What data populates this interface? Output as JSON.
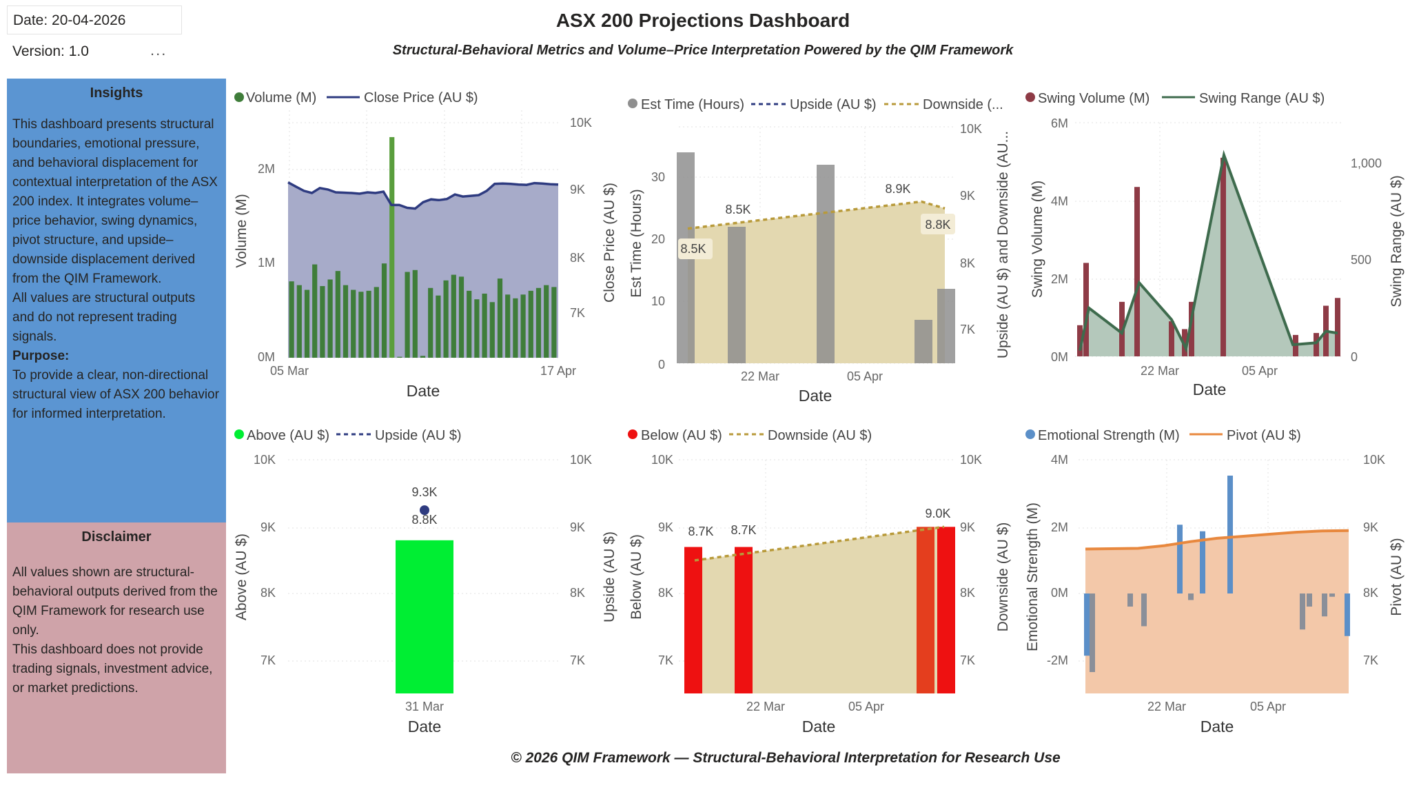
{
  "header": {
    "date": "Date: 20-04-2026",
    "version": "Version: 1.0",
    "more": "...",
    "title": "ASX 200 Projections Dashboard",
    "subtitle": "Structural-Behavioral Metrics and Volume–Price Interpretation Powered by the QIM Framework"
  },
  "insights": {
    "title": "Insights",
    "text1": "This dashboard presents structural boundaries, emotional pressure, and behavioral displacement for contextual interpretation of the ASX 200 index. It integrates volume–price behavior, swing dynamics, pivot structure, and upside–downside displacement derived from the QIM Framework.",
    "text2": "All values are structural outputs and do not represent trading signals.",
    "purpose_label": "Purpose:",
    "purpose_text": "To provide a clear, non-directional structural view of ASX 200 behavior for informed interpretation."
  },
  "disclaimer": {
    "title": "Disclaimer",
    "text1": "All values shown are structural-behavioral outputs derived from the QIM Framework for research use only.",
    "text2": "This dashboard does not provide trading signals, investment advice, or market predictions."
  },
  "footer": "© 2026 QIM Framework — Structural-Behavioral Interpretation for Research Use",
  "colors": {
    "volume": "#3f7d3a",
    "volume_spike": "#5a9e3d",
    "close_line": "#2e3b80",
    "close_area": "#a7abc9",
    "est_time": "#8f8f8f",
    "upside_line": "#2e3b80",
    "downside_line": "#b89a3a",
    "updown_area": "#e3d8b0",
    "swing_volume": "#8e3b46",
    "swing_range": "#3e6b4d",
    "swing_area": "#b4c8bb",
    "above": "#00ee33",
    "below_bar": "#ee1111",
    "below_bar_dark": "#e43e1e",
    "emotional": "#5b8fc8",
    "emotional_dim": "#8a8f99",
    "pivot": "#e8883e",
    "pivot_area": "#f3c8a9"
  },
  "charts": {
    "c1": {
      "legend": [
        "Volume (M)",
        "Close Price (AU $)"
      ],
      "y_left_title": "Volume (M)",
      "y_right_title": "Close Price (AU $)",
      "x_title": "Date",
      "y_left_ticks": [
        "0M",
        "1M",
        "2M"
      ],
      "y_right_ticks": [
        "7K",
        "8K",
        "9K",
        "10K"
      ],
      "x_ticks": [
        "05 Mar",
        "17 Apr"
      ]
    },
    "c2": {
      "legend": [
        "Est Time (Hours)",
        "Upside (AU $)",
        "Downside (..."
      ],
      "y_left_title": "Est Time (Hours)",
      "y_right_title": "Upside (AU $) and Downside (AU...",
      "x_title": "Date",
      "y_left_ticks": [
        "0",
        "10",
        "20",
        "30"
      ],
      "y_right_ticks": [
        "7K",
        "8K",
        "9K",
        "10K"
      ],
      "x_ticks": [
        "22 Mar",
        "05 Apr"
      ],
      "labels": [
        "8.5K",
        "8.5K",
        "8.9K",
        "8.8K"
      ]
    },
    "c3": {
      "legend": [
        "Swing Volume (M)",
        "Swing Range (AU $)"
      ],
      "y_left_title": "Swing Volume (M)",
      "y_right_title": "Swing Range (AU $)",
      "x_title": "Date",
      "y_left_ticks": [
        "0M",
        "2M",
        "4M",
        "6M"
      ],
      "y_right_ticks": [
        "0",
        "500",
        "1,000"
      ],
      "x_ticks": [
        "22 Mar",
        "05 Apr"
      ]
    },
    "c4": {
      "legend": [
        "Above (AU $)",
        "Upside (AU $)"
      ],
      "y_left_title": "Above (AU $)",
      "y_right_title": "Upside (AU $)",
      "x_title": "Date",
      "y_left_ticks": [
        "7K",
        "8K",
        "9K",
        "10K"
      ],
      "y_right_ticks": [
        "7K",
        "8K",
        "9K",
        "10K"
      ],
      "x_ticks": [
        "31 Mar"
      ],
      "labels": [
        "9.3K",
        "8.8K"
      ]
    },
    "c5": {
      "legend": [
        "Below (AU $)",
        "Downside  (AU $)"
      ],
      "y_left_title": "Below (AU $)",
      "y_right_title": "Downside (AU $)",
      "x_title": "Date",
      "y_left_ticks": [
        "7K",
        "8K",
        "9K",
        "10K"
      ],
      "y_right_ticks": [
        "7K",
        "8K",
        "9K",
        "10K"
      ],
      "x_ticks": [
        "22 Mar",
        "05 Apr"
      ],
      "labels": [
        "8.7K",
        "8.7K",
        "9.0K"
      ]
    },
    "c6": {
      "legend": [
        "Emotional Strength (M)",
        "Pivot (AU $)"
      ],
      "y_left_title": "Emotional Strength (M)",
      "y_right_title": "Pivot (AU $)",
      "x_title": "Date",
      "y_left_ticks": [
        "-2M",
        "0M",
        "2M",
        "4M"
      ],
      "y_right_ticks": [
        "7K",
        "8K",
        "9K",
        "10K"
      ],
      "x_ticks": [
        "22 Mar",
        "05 Apr"
      ]
    }
  },
  "chart_data": [
    {
      "type": "bar",
      "series": [
        {
          "name": "Volume (M)",
          "values": [
            0.81,
            0.77,
            0.72,
            0.99,
            0.76,
            0.83,
            0.92,
            0.77,
            0.72,
            0.7,
            0.71,
            0.75,
            1.0,
            2.34,
            0.01,
            0.91,
            0.93,
            0.02,
            0.74,
            0.66,
            0.82,
            0.88,
            0.86,
            0.71,
            0.62,
            0.68,
            0.59,
            0.84,
            0.67,
            0.63,
            0.67,
            0.71,
            0.74,
            0.77,
            0.75
          ]
        },
        {
          "name": "Close Price (AU $)",
          "x": [
            0,
            1,
            2,
            3,
            4,
            5,
            6,
            7,
            8,
            9,
            10,
            11,
            12,
            13,
            14,
            15,
            16,
            17,
            18,
            19,
            20,
            21,
            22,
            23,
            24,
            25,
            26,
            27,
            28,
            29,
            30,
            31,
            32,
            33,
            34
          ],
          "values": [
            8980,
            8920,
            8860,
            8830,
            8900,
            8880,
            8840,
            8835,
            8830,
            8820,
            8840,
            8830,
            8850,
            8660,
            8660,
            8620,
            8610,
            8700,
            8740,
            8730,
            8745,
            8810,
            8780,
            8790,
            8800,
            8860,
            8960,
            8965,
            8960,
            8950,
            8945,
            8970,
            8965,
            8955,
            8950
          ]
        }
      ],
      "ylim_left": [
        0,
        2.5
      ],
      "ylim_right": [
        6500,
        10000
      ]
    },
    {
      "type": "bar",
      "series": [
        {
          "name": "Est Time (Hours)",
          "values": [
            34,
            22,
            32,
            7,
            12
          ]
        },
        {
          "name": "Upside (AU $)",
          "values": [
            8500,
            8540,
            8580,
            8620,
            8660,
            8700,
            8740,
            8780,
            8820,
            8860,
            8900,
            8800
          ]
        },
        {
          "name": "Downside (...",
          "values": [
            8500,
            8540,
            8580,
            8620,
            8660,
            8700,
            8740,
            8780,
            8820,
            8860,
            8900,
            8800
          ]
        }
      ],
      "ylim_left": [
        0,
        35
      ],
      "ylim_right": [
        6500,
        10000
      ]
    },
    {
      "type": "bar",
      "series": [
        {
          "name": "Swing Volume (M)",
          "values": [
            0.8,
            2.4,
            1.4,
            4.35,
            0.9,
            0.7,
            1.4,
            5.1,
            0.55,
            0.6,
            1.3,
            1.5
          ]
        },
        {
          "name": "Swing Range (AU $)",
          "values": [
            30,
            250,
            120,
            380,
            190,
            40,
            250,
            1040,
            60,
            70,
            130,
            120
          ]
        }
      ],
      "ylim_left": [
        0,
        6
      ],
      "ylim_right": [
        0,
        1200
      ]
    },
    {
      "type": "bar",
      "series": [
        {
          "name": "Above (AU $)",
          "values": [
            8800
          ]
        },
        {
          "name": "Upside (AU $)",
          "values": [
            9300
          ]
        }
      ],
      "ylim_left": [
        6500,
        10000
      ],
      "ylim_right": [
        6500,
        10000
      ]
    },
    {
      "type": "bar",
      "series": [
        {
          "name": "Below (AU $)",
          "values": [
            8700,
            8700,
            9000,
            9000
          ]
        },
        {
          "name": "Downside  (AU $)",
          "values": [
            8500,
            8550,
            8600,
            8650,
            8700,
            8750,
            8800,
            8850,
            8900,
            8950,
            9000
          ]
        }
      ],
      "ylim_left": [
        6500,
        10000
      ],
      "ylim_right": [
        6500,
        10000
      ]
    },
    {
      "type": "bar",
      "series": [
        {
          "name": "Emotional Strength (M)",
          "values": [
            -1.9,
            -2.4,
            -0.4,
            -1.0,
            2.1,
            -0.2,
            1.9,
            3.6,
            -1.1,
            -0.4,
            -0.7,
            -0.1,
            -1.3
          ]
        },
        {
          "name": "Pivot (AU $)",
          "values": [
            8670,
            8675,
            8680,
            8720,
            8780,
            8830,
            8860,
            8890,
            8920,
            8940,
            8945
          ]
        }
      ],
      "ylim_left": [
        -3,
        4
      ],
      "ylim_right": [
        6500,
        10000
      ]
    }
  ]
}
